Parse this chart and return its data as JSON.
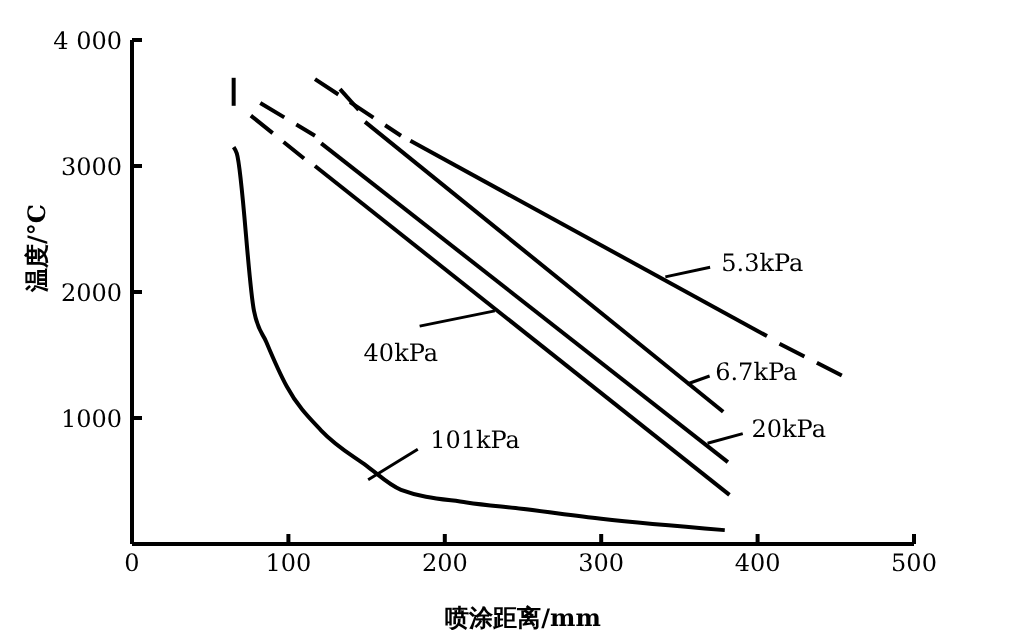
{
  "chart_data": {
    "type": "line",
    "xlabel": "喷涂距离/mm",
    "ylabel": "温度/°C",
    "xlim": [
      0,
      500
    ],
    "xticks": [
      0,
      100,
      200,
      300,
      400,
      500
    ],
    "ylim": [
      0,
      4000
    ],
    "yticks": [
      {
        "value": 1000,
        "label": "1000"
      },
      {
        "value": 2000,
        "label": "2000"
      },
      {
        "value": 3000,
        "label": "3000"
      },
      {
        "value": 4000,
        "label": "4 000"
      }
    ],
    "marker": "none",
    "series": [
      {
        "color": "#000000",
        "line_style": "dashed",
        "x": [
          117,
          172
        ],
        "values": [
          3690,
          3240
        ]
      },
      {
        "color": "#000000",
        "line_style": "solid",
        "x": [
          178,
          406
        ],
        "values": [
          3200,
          1650
        ]
      },
      {
        "color": "#000000",
        "line_style": "dashed",
        "x": [
          414,
          458
        ],
        "values": [
          1590,
          1310
        ]
      },
      {
        "color": "#000000",
        "line_style": "dashed",
        "x": [
          133,
          146
        ],
        "values": [
          3610,
          3430
        ]
      },
      {
        "color": "#000000",
        "line_style": "solid",
        "x": [
          149,
          378
        ],
        "values": [
          3350,
          1050
        ]
      },
      {
        "color": "#000000",
        "line_style": "dashed",
        "x": [
          82,
          117
        ],
        "values": [
          3500,
          3240
        ]
      },
      {
        "color": "#000000",
        "line_style": "solid",
        "x": [
          121,
          381
        ],
        "values": [
          3180,
          650
        ]
      },
      {
        "color": "#000000",
        "line_style": "dashed",
        "x": [
          76,
          110
        ],
        "values": [
          3400,
          3060
        ]
      },
      {
        "color": "#000000",
        "line_style": "solid",
        "x": [
          117,
          382
        ],
        "values": [
          3000,
          390
        ]
      },
      {
        "color": "#000000",
        "line_style": "dashed",
        "x": [
          65,
          65
        ],
        "values": [
          3700,
          3450
        ]
      },
      {
        "color": "#000000",
        "line_style": "solid",
        "x": [
          65,
          67,
          78,
          86,
          99,
          121,
          150,
          172,
          214,
          249,
          300,
          379
        ],
        "values": [
          3150,
          3100,
          1850,
          1600,
          1250,
          900,
          620,
          430,
          330,
          280,
          200,
          110
        ]
      }
    ],
    "annotations": [
      {
        "text": "5.3kPa",
        "x": 341,
        "y": 2120
      },
      {
        "text": "6.7kPa",
        "x": 355,
        "y": 1270
      },
      {
        "text": "20kPa",
        "x": 368,
        "y": 800
      },
      {
        "text": "40kPa",
        "x": 232,
        "y": 1850
      },
      {
        "text": "101kPa",
        "x": 151,
        "y": 510
      }
    ]
  }
}
